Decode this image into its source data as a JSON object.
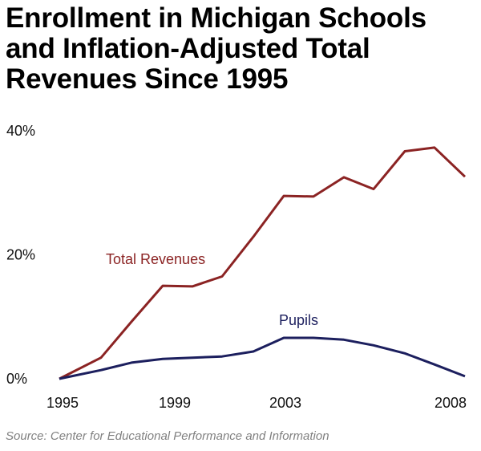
{
  "title_lines": [
    "Enrollment in Michigan Schools",
    "and Inflation-Adjusted Total",
    "Revenues Since 1995"
  ],
  "source": "Source: Center for Educational Performance and Information",
  "chart_data": {
    "type": "line",
    "title": "Enrollment in Michigan Schools and Inflation-Adjusted Total Revenues Since 1995",
    "xlabel": "",
    "ylabel": "",
    "x": [
      1995,
      1996,
      1997,
      1998,
      1999,
      2000,
      2001,
      2002,
      2003,
      2004,
      2005,
      2006,
      2007,
      2008
    ],
    "x_tick_labels": [
      "1995",
      "1999",
      "2003",
      "2008"
    ],
    "y_tick_labels": [
      "0%",
      "20%",
      "40%"
    ],
    "y_ticks": [
      0,
      20,
      40
    ],
    "ylim": [
      0,
      40
    ],
    "grid": false,
    "legend": "inline labels",
    "series": [
      {
        "name": "Total Revenues",
        "color": "#8b2323",
        "values": [
          0,
          3.4,
          9.2,
          15.0,
          14.9,
          16.5,
          22.9,
          29.5,
          29.4,
          32.5,
          30.6,
          36.7,
          37.3,
          32.6
        ]
      },
      {
        "name": "Pupils",
        "color": "#1c1f5e",
        "values": [
          0,
          1.4,
          2.6,
          3.2,
          3.4,
          3.6,
          4.4,
          6.6,
          6.6,
          6.3,
          5.4,
          4.1,
          2.3,
          0.4
        ]
      }
    ]
  }
}
